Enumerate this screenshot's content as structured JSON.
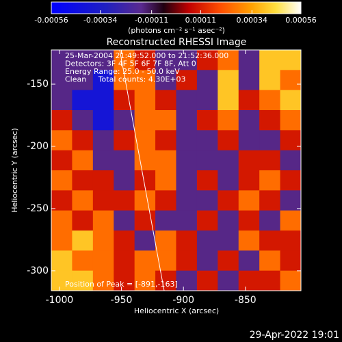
{
  "chart_data": {
    "type": "heatmap",
    "title": "Reconstructed RHESSI Image",
    "colorbar_label": "(photons cm⁻² s⁻¹ asec⁻²)",
    "zlim": [
      -0.00056,
      0.00056
    ],
    "colorbar_ticks": [
      -0.00056,
      -0.00034,
      -0.00011,
      0.00011,
      0.00034,
      0.00056
    ],
    "colormap": [
      [
        0,
        "#0000ff"
      ],
      [
        0.22,
        "#2020c0"
      ],
      [
        0.36,
        "#5a2a90"
      ],
      [
        0.45,
        "#200010"
      ],
      [
        0.55,
        "#c00000"
      ],
      [
        0.68,
        "#ff5000"
      ],
      [
        0.8,
        "#ffa000"
      ],
      [
        0.9,
        "#ffe040"
      ],
      [
        1,
        "#ffffff"
      ]
    ],
    "annotations": [
      "25-Mar-2004 21:49:52.000 to 21:52:36.000",
      "Detectors: 3F 4F 5F 6F 7F 8F, Att 0",
      "Energy Range: 25.0 - 50.0 keV",
      "Clean     Total counts: 4.30E+03"
    ],
    "peak_label": "Position of Peak = [-891,-163]",
    "x_label": "Heliocentric X (arcsec)",
    "y_label": "Heliocentric Y (arcsec)",
    "xlim": [
      -1006.6,
      -805.2
    ],
    "ylim": [
      -316,
      -122.5
    ],
    "xticks": [
      -1000,
      -950,
      -900,
      -850
    ],
    "yticks": [
      -150,
      -200,
      -250,
      -300
    ],
    "values": [
      [
        -0.00015,
        -0.00015,
        -0.00015,
        0.00025,
        0.0001,
        -0.00015,
        -0.00015,
        0.0001,
        0.00025,
        -0.00015,
        0.0004,
        0.0004
      ],
      [
        -0.00015,
        -0.00015,
        -0.0004,
        0.00025,
        0.00025,
        -0.00015,
        0.0001,
        -0.00015,
        0.0004,
        -0.00015,
        0.0004,
        0.00025
      ],
      [
        -0.00015,
        -0.0004,
        -0.0004,
        0.0001,
        0.00025,
        0.0001,
        -0.00015,
        -0.00015,
        0.0004,
        0.0001,
        0.00025,
        0.0004
      ],
      [
        0.0001,
        -0.00015,
        -0.0004,
        -0.00015,
        0.00025,
        0.00025,
        -0.00015,
        0.0001,
        0.00025,
        -0.00015,
        0.0001,
        0.00025
      ],
      [
        0.00025,
        0.0001,
        -0.00015,
        0.0001,
        0.00025,
        0.0001,
        -0.00015,
        -0.00015,
        0.0001,
        -0.00015,
        -0.00015,
        0.0001
      ],
      [
        0.0001,
        0.00025,
        -0.00015,
        -0.00015,
        0.00025,
        0.00025,
        -0.00015,
        -0.00015,
        -0.00015,
        0.0001,
        0.0001,
        -0.00015
      ],
      [
        0.00025,
        0.0001,
        0.0001,
        -0.00015,
        0.0001,
        0.00025,
        -0.00015,
        0.0001,
        -0.00015,
        0.0001,
        0.00025,
        0.0001
      ],
      [
        0.0001,
        0.00025,
        0.0001,
        0.0001,
        0.00025,
        0.0001,
        -0.00015,
        -0.00015,
        0.0001,
        0.00025,
        0.0001,
        -0.00015
      ],
      [
        0.00025,
        0.0001,
        0.00025,
        -0.00015,
        0.0001,
        -0.00015,
        -0.00015,
        0.0001,
        -0.00015,
        0.0001,
        -0.00015,
        0.00025
      ],
      [
        0.00025,
        0.0004,
        0.00025,
        0.0001,
        -0.00015,
        0.00025,
        0.0001,
        -0.00015,
        -0.00015,
        0.00025,
        0.0001,
        0.0001
      ],
      [
        0.0004,
        0.00025,
        0.00025,
        0.0001,
        0.00025,
        0.00025,
        0.0001,
        -0.00015,
        0.0001,
        -0.00015,
        0.00025,
        0.0001
      ],
      [
        0.0004,
        0.0004,
        0.00025,
        0.0001,
        0.00025,
        0.0001,
        -0.00015,
        0.0001,
        -0.00015,
        0.0001,
        0.0001,
        0.00025
      ]
    ],
    "footer": "29-Apr-2022 19:01"
  }
}
